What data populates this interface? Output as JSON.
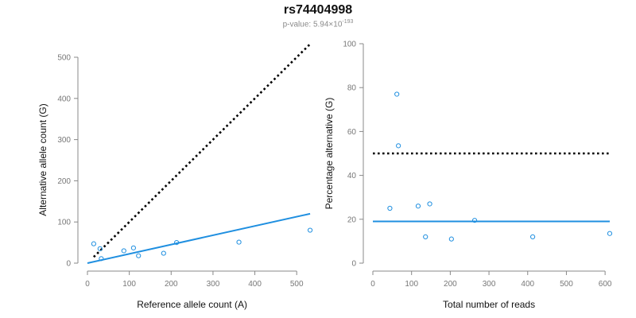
{
  "figure": {
    "title": "rs74404998",
    "pvalue_prefix": "p-value: 5.94×10",
    "pvalue_exponent": "-193"
  },
  "colors": {
    "points": "#1f8fe0",
    "fit_line": "#1f8fe0",
    "reference_line": "#000000",
    "axis": "#888888",
    "tick_text": "#777777"
  },
  "chart_data": [
    {
      "type": "scatter",
      "id": "left",
      "title": "",
      "xlabel": "Reference allele count (A)",
      "ylabel": "Alternative allele count (G)",
      "xlim": [
        0,
        530
      ],
      "ylim": [
        0,
        500
      ],
      "xticks": [
        0,
        100,
        200,
        300,
        400,
        500
      ],
      "yticks": [
        0,
        100,
        200,
        300,
        400,
        500
      ],
      "grid": false,
      "points": [
        {
          "x": 15,
          "y": 47
        },
        {
          "x": 30,
          "y": 35
        },
        {
          "x": 33,
          "y": 11
        },
        {
          "x": 87,
          "y": 30
        },
        {
          "x": 110,
          "y": 37
        },
        {
          "x": 122,
          "y": 18
        },
        {
          "x": 182,
          "y": 24
        },
        {
          "x": 213,
          "y": 50
        },
        {
          "x": 362,
          "y": 51
        },
        {
          "x": 532,
          "y": 80
        }
      ],
      "lines": [
        {
          "role": "fitted",
          "style": "solid",
          "x": [
            0,
            532
          ],
          "y": [
            0,
            120
          ]
        },
        {
          "role": "expected",
          "style": "dotted",
          "x": [
            15,
            532
          ],
          "y": [
            15,
            532
          ]
        }
      ]
    },
    {
      "type": "scatter",
      "id": "right",
      "title": "",
      "xlabel": "Total number of reads",
      "ylabel": "Percentage alternative (G)",
      "xlim": [
        0,
        610
      ],
      "ylim": [
        0,
        100
      ],
      "xticks": [
        0,
        100,
        200,
        300,
        400,
        500,
        600
      ],
      "yticks": [
        0,
        20,
        40,
        60,
        80,
        100
      ],
      "grid": false,
      "points": [
        {
          "x": 44,
          "y": 25
        },
        {
          "x": 62,
          "y": 77
        },
        {
          "x": 66,
          "y": 53.5
        },
        {
          "x": 117,
          "y": 26
        },
        {
          "x": 136,
          "y": 12
        },
        {
          "x": 147,
          "y": 27
        },
        {
          "x": 203,
          "y": 11
        },
        {
          "x": 263,
          "y": 19.5
        },
        {
          "x": 413,
          "y": 12
        },
        {
          "x": 612,
          "y": 13.5
        }
      ],
      "lines": [
        {
          "role": "fitted",
          "style": "solid",
          "x": [
            0,
            612
          ],
          "y": [
            19,
            19
          ]
        },
        {
          "role": "expected",
          "style": "dotted",
          "x": [
            0,
            612
          ],
          "y": [
            50,
            50
          ]
        }
      ]
    }
  ]
}
